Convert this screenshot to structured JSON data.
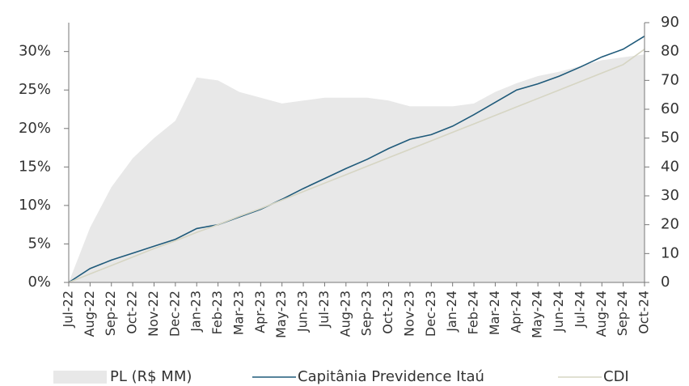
{
  "chart_data": {
    "type": "line",
    "categories": [
      "Jul-22",
      "Aug-22",
      "Sep-22",
      "Oct-22",
      "Nov-22",
      "Dec-22",
      "Jan-23",
      "Feb-23",
      "Mar-23",
      "Apr-23",
      "May-23",
      "Jun-23",
      "Jul-23",
      "Aug-23",
      "Sep-23",
      "Oct-23",
      "Nov-23",
      "Dec-23",
      "Jan-24",
      "Feb-24",
      "Mar-24",
      "Apr-24",
      "May-24",
      "Jun-24",
      "Jul-24",
      "Aug-24",
      "Sep-24",
      "Oct-24"
    ],
    "series": [
      {
        "name": "PL (R$ MM)",
        "color": "#e8e8e8",
        "axis": "y2",
        "area": true,
        "values": [
          0,
          19,
          33,
          43,
          50,
          56,
          71,
          70,
          66,
          64,
          62,
          63,
          64,
          64,
          64,
          63,
          61,
          61,
          61,
          62,
          66,
          69,
          71.5,
          73,
          75,
          77,
          78,
          79
        ]
      },
      {
        "name": "Capitânia Previdence Itaú",
        "color": "#1f5a7a",
        "values": [
          0,
          1.8,
          2.9,
          3.8,
          4.7,
          5.6,
          7.0,
          7.5,
          8.5,
          9.5,
          10.8,
          12.2,
          13.5,
          14.8,
          16.0,
          17.4,
          18.6,
          19.2,
          20.3,
          21.8,
          23.4,
          25.0,
          25.8,
          26.8,
          28.0,
          29.3,
          30.3,
          32.0
        ]
      },
      {
        "name": "CDI",
        "color": "#d6d5c3",
        "values": [
          0,
          1.1,
          2.2,
          3.3,
          4.4,
          5.4,
          6.5,
          7.5,
          8.6,
          9.6,
          10.7,
          11.8,
          12.9,
          14.0,
          15.1,
          16.2,
          17.3,
          18.4,
          19.5,
          20.6,
          21.7,
          22.8,
          23.9,
          25.0,
          26.1,
          27.2,
          28.3,
          30.3
        ]
      }
    ],
    "ylim": [
      0,
      33.75
    ],
    "yticks": [
      {
        "value": 0,
        "label": "0%"
      },
      {
        "value": 5,
        "label": "5%"
      },
      {
        "value": 10,
        "label": "10%"
      },
      {
        "value": 15,
        "label": "15%"
      },
      {
        "value": 20,
        "label": "20%"
      },
      {
        "value": 25,
        "label": "25%"
      },
      {
        "value": 30,
        "label": "30%"
      }
    ],
    "y2lim": [
      0,
      90
    ],
    "y2ticks": [
      0,
      10,
      20,
      30,
      40,
      50,
      60,
      70,
      80,
      90
    ]
  }
}
